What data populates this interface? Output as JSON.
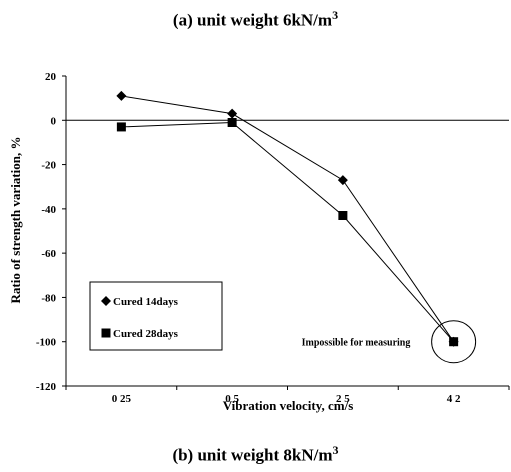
{
  "captions": {
    "top": {
      "text": "(a) unit weight 6kN/m",
      "sup": "3"
    },
    "bottom": {
      "text": "(b) unit weight 8kN/m",
      "sup": "3"
    }
  },
  "chart_data": {
    "type": "line",
    "title": "",
    "xlabel": "Vibration velocity, cm/s",
    "ylabel": "Ratio of strength variation, %",
    "categories": [
      "0.25",
      "0.5",
      "2.5",
      "4.2"
    ],
    "category_labels": [
      "0 25",
      "0 5",
      "2 5",
      "4 2"
    ],
    "ylim": [
      -120,
      20
    ],
    "yticks": [
      20,
      0,
      -20,
      -40,
      -60,
      -80,
      -100,
      -120
    ],
    "grid": false,
    "legend_position": "bottom-left",
    "series": [
      {
        "name": "Cured 14days",
        "marker": "diamond",
        "values": [
          11,
          3,
          -27,
          -100
        ]
      },
      {
        "name": "Cured 28days",
        "marker": "square",
        "values": [
          -3,
          -1,
          -43,
          -100
        ]
      }
    ],
    "annotations": [
      {
        "text": "Impossible for measuring",
        "at_category": "4.2",
        "value": -100
      }
    ],
    "colors": {
      "line": "#000000",
      "marker": "#000000"
    }
  }
}
